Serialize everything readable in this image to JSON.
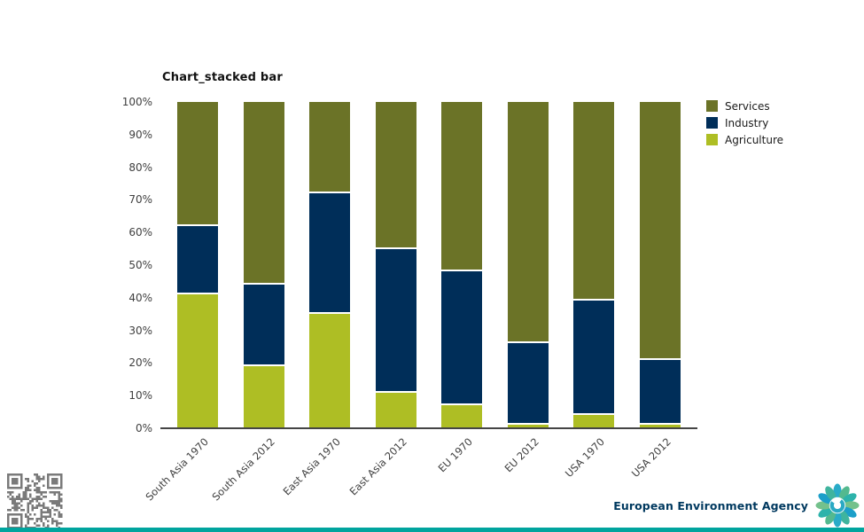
{
  "title": "Chart_stacked bar",
  "chart_data": {
    "type": "bar",
    "stacked": true,
    "title": "Chart_stacked bar",
    "categories": [
      "South Asia 1970",
      "South Asia 2012",
      "East Asia 1970",
      "East Asia 2012",
      "EU 1970",
      "EU 2012",
      "USA 1970",
      "USA 2012"
    ],
    "series": [
      {
        "name": "Services",
        "color": "#6b7327",
        "values": [
          38,
          56,
          28,
          45,
          52,
          74,
          61,
          79
        ]
      },
      {
        "name": "Industry",
        "color": "#002e59",
        "values": [
          21,
          25,
          37,
          44,
          41,
          25,
          35,
          20
        ]
      },
      {
        "name": "Agriculture",
        "color": "#aebe24",
        "values": [
          41,
          19,
          35,
          11,
          7,
          1,
          4,
          1
        ]
      }
    ],
    "stack_order_bottom_to_top": [
      "Agriculture",
      "Industry",
      "Services"
    ],
    "y_tick_labels": [
      "0%",
      "10%",
      "20%",
      "30%",
      "40%",
      "50%",
      "60%",
      "70%",
      "80%",
      "90%",
      "100%"
    ],
    "ylim": [
      0,
      100
    ],
    "xlabel": "",
    "ylabel": "",
    "grid": false,
    "legend_position": "top-right",
    "legend_entries": [
      "Services",
      "Industry",
      "Agriculture"
    ]
  },
  "footer": {
    "agency_name": "European Environment Agency"
  },
  "icons": {
    "qr": "qr-code",
    "logo": "eea-flower-logo"
  },
  "colors": {
    "services": "#6b7327",
    "industry": "#002e59",
    "agriculture": "#aebe24",
    "axis_line": "#454545",
    "tick_text": "#404040",
    "title_text": "#111111",
    "legend_text": "#1a1a1a",
    "eea_text": "#00395f",
    "footer_bar": "#00a49e",
    "qr_gray": "#7a7a7a",
    "logo_teals": [
      "#29abc8",
      "#53b98f",
      "#2db3ab",
      "#74c18c",
      "#1c9fc9",
      "#3fb49e"
    ],
    "logo_crescent": "#2aa9c4"
  }
}
